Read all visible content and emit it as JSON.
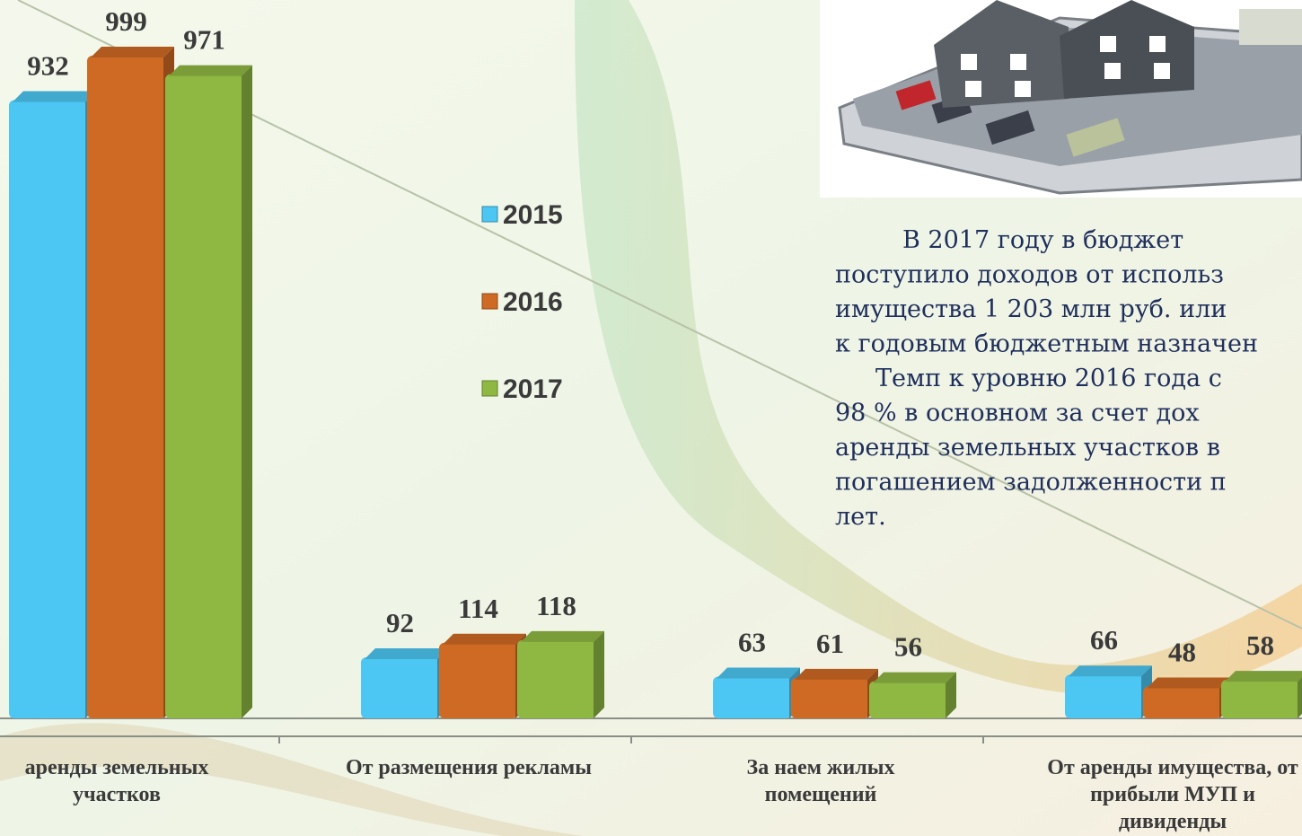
{
  "chart_data": {
    "type": "bar",
    "categories": [
      [
        "аренды земельных",
        "участков"
      ],
      [
        "От размещения рекламы"
      ],
      [
        "За наем жилых",
        "помещений"
      ],
      [
        "От аренды имущества, от",
        "прибыли МУП и",
        "дивиденды"
      ]
    ],
    "series": [
      {
        "name": "2015",
        "color": "#4cc6f2",
        "values": [
          932,
          92,
          63,
          66
        ]
      },
      {
        "name": "2016",
        "color": "#cf6a24",
        "values": [
          999,
          114,
          61,
          48
        ]
      },
      {
        "name": "2017",
        "color": "#8fb843",
        "values": [
          971,
          118,
          56,
          58
        ]
      }
    ]
  },
  "text": {
    "lines": [
      "В 2017 году в бюджет",
      "поступило доходов от использ",
      "имущества 1 203 млн руб. или",
      "к годовым бюджетным назначен",
      "Темп к уровню 2016 года с",
      "98 % в основном за счет дох",
      "аренды земельных участков в",
      "погашением задолженности п",
      "лет."
    ]
  }
}
